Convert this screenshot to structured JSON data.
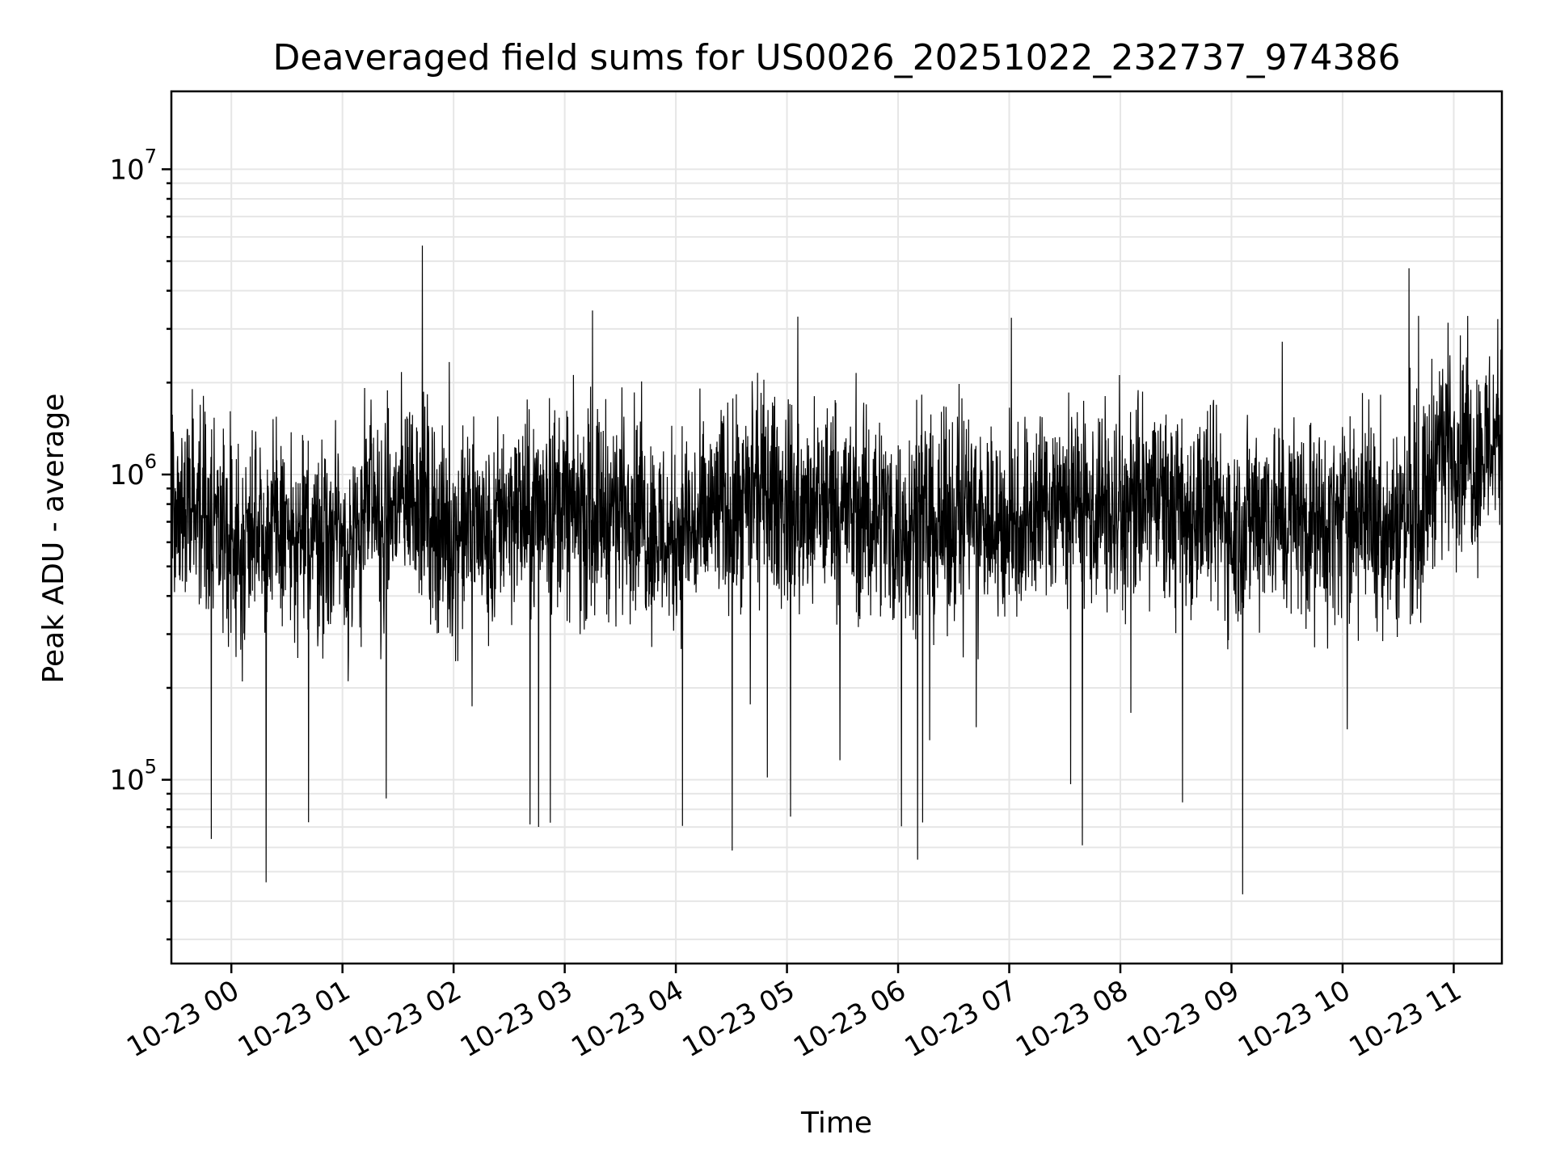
{
  "chart_data": {
    "type": "line",
    "title": "Deaveraged field sums for US0026_20251022_232737_974386",
    "xlabel": "Time",
    "ylabel": "Peak ADU - average",
    "yscale": "log",
    "ylim": [
      25000,
      18000000
    ],
    "y_tick_labels": [
      {
        "base": "10",
        "exp": "5",
        "value": 100000
      },
      {
        "base": "10",
        "exp": "6",
        "value": 1000000
      },
      {
        "base": "10",
        "exp": "7",
        "value": 10000000
      }
    ],
    "xlim": [
      "2025-10-22 23:27:37",
      "2025-10-23 11:26:00"
    ],
    "x_tick_labels": [
      {
        "label": "10-23 00",
        "time": "2025-10-23 00:00"
      },
      {
        "label": "10-23 01",
        "time": "2025-10-23 01:00"
      },
      {
        "label": "10-23 02",
        "time": "2025-10-23 02:00"
      },
      {
        "label": "10-23 03",
        "time": "2025-10-23 03:00"
      },
      {
        "label": "10-23 04",
        "time": "2025-10-23 04:00"
      },
      {
        "label": "10-23 05",
        "time": "2025-10-23 05:00"
      },
      {
        "label": "10-23 06",
        "time": "2025-10-23 06:00"
      },
      {
        "label": "10-23 07",
        "time": "2025-10-23 07:00"
      },
      {
        "label": "10-23 08",
        "time": "2025-10-23 08:00"
      },
      {
        "label": "10-23 09",
        "time": "2025-10-23 09:00"
      },
      {
        "label": "10-23 10",
        "time": "2025-10-23 10:00"
      },
      {
        "label": "10-23 11",
        "time": "2025-10-23 11:00"
      }
    ],
    "grid": true,
    "legend": "none",
    "line_color": "#000000",
    "series": [
      {
        "x": [
          "2025-10-22 23:27",
          "2025-10-22 23:35",
          "2025-10-22 23:42",
          "2025-10-22 23:50",
          "2025-10-22 23:57",
          "2025-10-23 00:05",
          "2025-10-23 00:12",
          "2025-10-23 00:20",
          "2025-10-23 00:27",
          "2025-10-23 00:35",
          "2025-10-23 00:42",
          "2025-10-23 00:50",
          "2025-10-23 00:57",
          "2025-10-23 01:05",
          "2025-10-23 01:12",
          "2025-10-23 01:20",
          "2025-10-23 01:27",
          "2025-10-23 01:35",
          "2025-10-23 01:42",
          "2025-10-23 01:50",
          "2025-10-23 01:57",
          "2025-10-23 02:05",
          "2025-10-23 02:12",
          "2025-10-23 02:20",
          "2025-10-23 02:27",
          "2025-10-23 02:35",
          "2025-10-23 02:42",
          "2025-10-23 02:50",
          "2025-10-23 02:57",
          "2025-10-23 03:05",
          "2025-10-23 03:12",
          "2025-10-23 03:20",
          "2025-10-23 03:27",
          "2025-10-23 03:35",
          "2025-10-23 03:42",
          "2025-10-23 03:50",
          "2025-10-23 03:57",
          "2025-10-23 04:05",
          "2025-10-23 04:12",
          "2025-10-23 04:20",
          "2025-10-23 04:27",
          "2025-10-23 04:35",
          "2025-10-23 04:42",
          "2025-10-23 04:50",
          "2025-10-23 04:57",
          "2025-10-23 05:05",
          "2025-10-23 05:12",
          "2025-10-23 05:20",
          "2025-10-23 05:27",
          "2025-10-23 05:35",
          "2025-10-23 05:42",
          "2025-10-23 05:50",
          "2025-10-23 05:57",
          "2025-10-23 06:05",
          "2025-10-23 06:12",
          "2025-10-23 06:20",
          "2025-10-23 06:27",
          "2025-10-23 06:35",
          "2025-10-23 06:42",
          "2025-10-23 06:50",
          "2025-10-23 06:57",
          "2025-10-23 07:05",
          "2025-10-23 07:12",
          "2025-10-23 07:20",
          "2025-10-23 07:27",
          "2025-10-23 07:35",
          "2025-10-23 07:42",
          "2025-10-23 07:50",
          "2025-10-23 07:57",
          "2025-10-23 08:05",
          "2025-10-23 08:12",
          "2025-10-23 08:20",
          "2025-10-23 08:27",
          "2025-10-23 08:35",
          "2025-10-23 08:42",
          "2025-10-23 08:50",
          "2025-10-23 08:57",
          "2025-10-23 09:05",
          "2025-10-23 09:12",
          "2025-10-23 09:20",
          "2025-10-23 09:27",
          "2025-10-23 09:35",
          "2025-10-23 09:42",
          "2025-10-23 09:50",
          "2025-10-23 09:57",
          "2025-10-23 10:05",
          "2025-10-23 10:12",
          "2025-10-23 10:20",
          "2025-10-23 10:27",
          "2025-10-23 10:35",
          "2025-10-23 10:42",
          "2025-10-23 10:50",
          "2025-10-23 10:57",
          "2025-10-23 11:05",
          "2025-10-23 11:12",
          "2025-10-23 11:20",
          "2025-10-23 11:26"
        ],
        "y": [
          1000000,
          700000,
          900000,
          600000,
          650000,
          500000,
          800000,
          600000,
          700000,
          550000,
          650000,
          600000,
          700000,
          500000,
          800000,
          650000,
          750000,
          900000,
          850000,
          700000,
          600000,
          650000,
          700000,
          550000,
          800000,
          750000,
          700000,
          850000,
          800000,
          750000,
          700000,
          800000,
          750000,
          850000,
          700000,
          650000,
          600000,
          700000,
          650000,
          750000,
          800000,
          700000,
          850000,
          900000,
          800000,
          750000,
          700000,
          800000,
          850000,
          750000,
          700000,
          800000,
          650000,
          700000,
          750000,
          650000,
          700000,
          800000,
          750000,
          700000,
          650000,
          700000,
          750000,
          800000,
          850000,
          800000,
          750000,
          800000,
          700000,
          750000,
          800000,
          850000,
          750000,
          700000,
          800000,
          750000,
          700000,
          650000,
          750000,
          800000,
          700000,
          750000,
          700000,
          650000,
          700000,
          800000,
          750000,
          700000,
          650000,
          750000,
          700000,
          1200000,
          1300000,
          1200000,
          1100000,
          1300000,
          1400000
        ]
      }
    ]
  }
}
